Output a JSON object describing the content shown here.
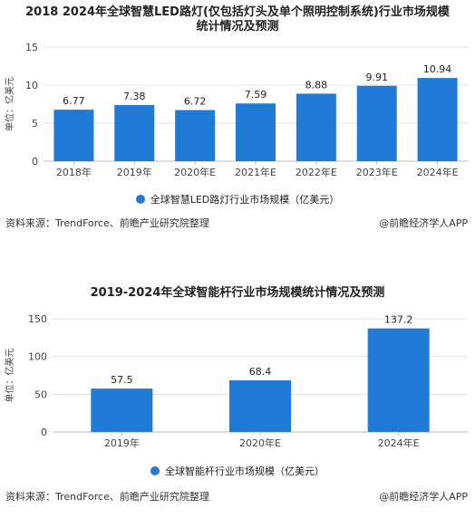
{
  "chart_data": [
    {
      "type": "bar",
      "title": "2018 2024年全球智慧LED路灯(仅包括灯头及单个照明控制系统)行业市场规模统计情况及预测",
      "title_line1": "2018 2024年全球智慧LED路灯(仅包括灯头及单个照明控制系统)行业市场规模",
      "title_line2": "统计情况及预测",
      "ylabel": "单位：亿美元",
      "ylim": [
        0,
        15
      ],
      "yticks": [
        0,
        5,
        10,
        15
      ],
      "grid": true,
      "categories": [
        "2018年",
        "2019年",
        "2020年E",
        "2021年E",
        "2022年E",
        "2023年E",
        "2024年E"
      ],
      "series": [
        {
          "name": "全球智慧LED路灯行业市场规模（亿美元）",
          "values": [
            6.77,
            7.38,
            6.72,
            7.59,
            8.88,
            9.91,
            10.94
          ]
        }
      ],
      "value_labels": [
        "6.77",
        "7.38",
        "6.72",
        "7.59",
        "8.88",
        "9.91",
        "10.94"
      ],
      "legend": "bottom-center",
      "color": "#1f7bd6",
      "source": "资料来源：TrendForce、前瞻产业研究院整理",
      "brand": "@前瞻经济学人APP"
    },
    {
      "type": "bar",
      "title": "2019-2024年全球智能杆行业市场规模统计情况及预测",
      "ylabel": "单位：亿美元",
      "ylim": [
        0,
        150
      ],
      "yticks": [
        0,
        50,
        100,
        150
      ],
      "grid": true,
      "categories": [
        "2019年",
        "2020年E",
        "2024年E"
      ],
      "series": [
        {
          "name": "全球智能杆行业市场规模（亿美元）",
          "values": [
            57.5,
            68.4,
            137.2
          ]
        }
      ],
      "value_labels": [
        "57.5",
        "68.4",
        "137.2"
      ],
      "legend": "bottom-center",
      "color": "#1f7bd6",
      "source": "资料来源：TrendForce、前瞻产业研究院整理",
      "brand": "@前瞻经济学人APP"
    }
  ]
}
